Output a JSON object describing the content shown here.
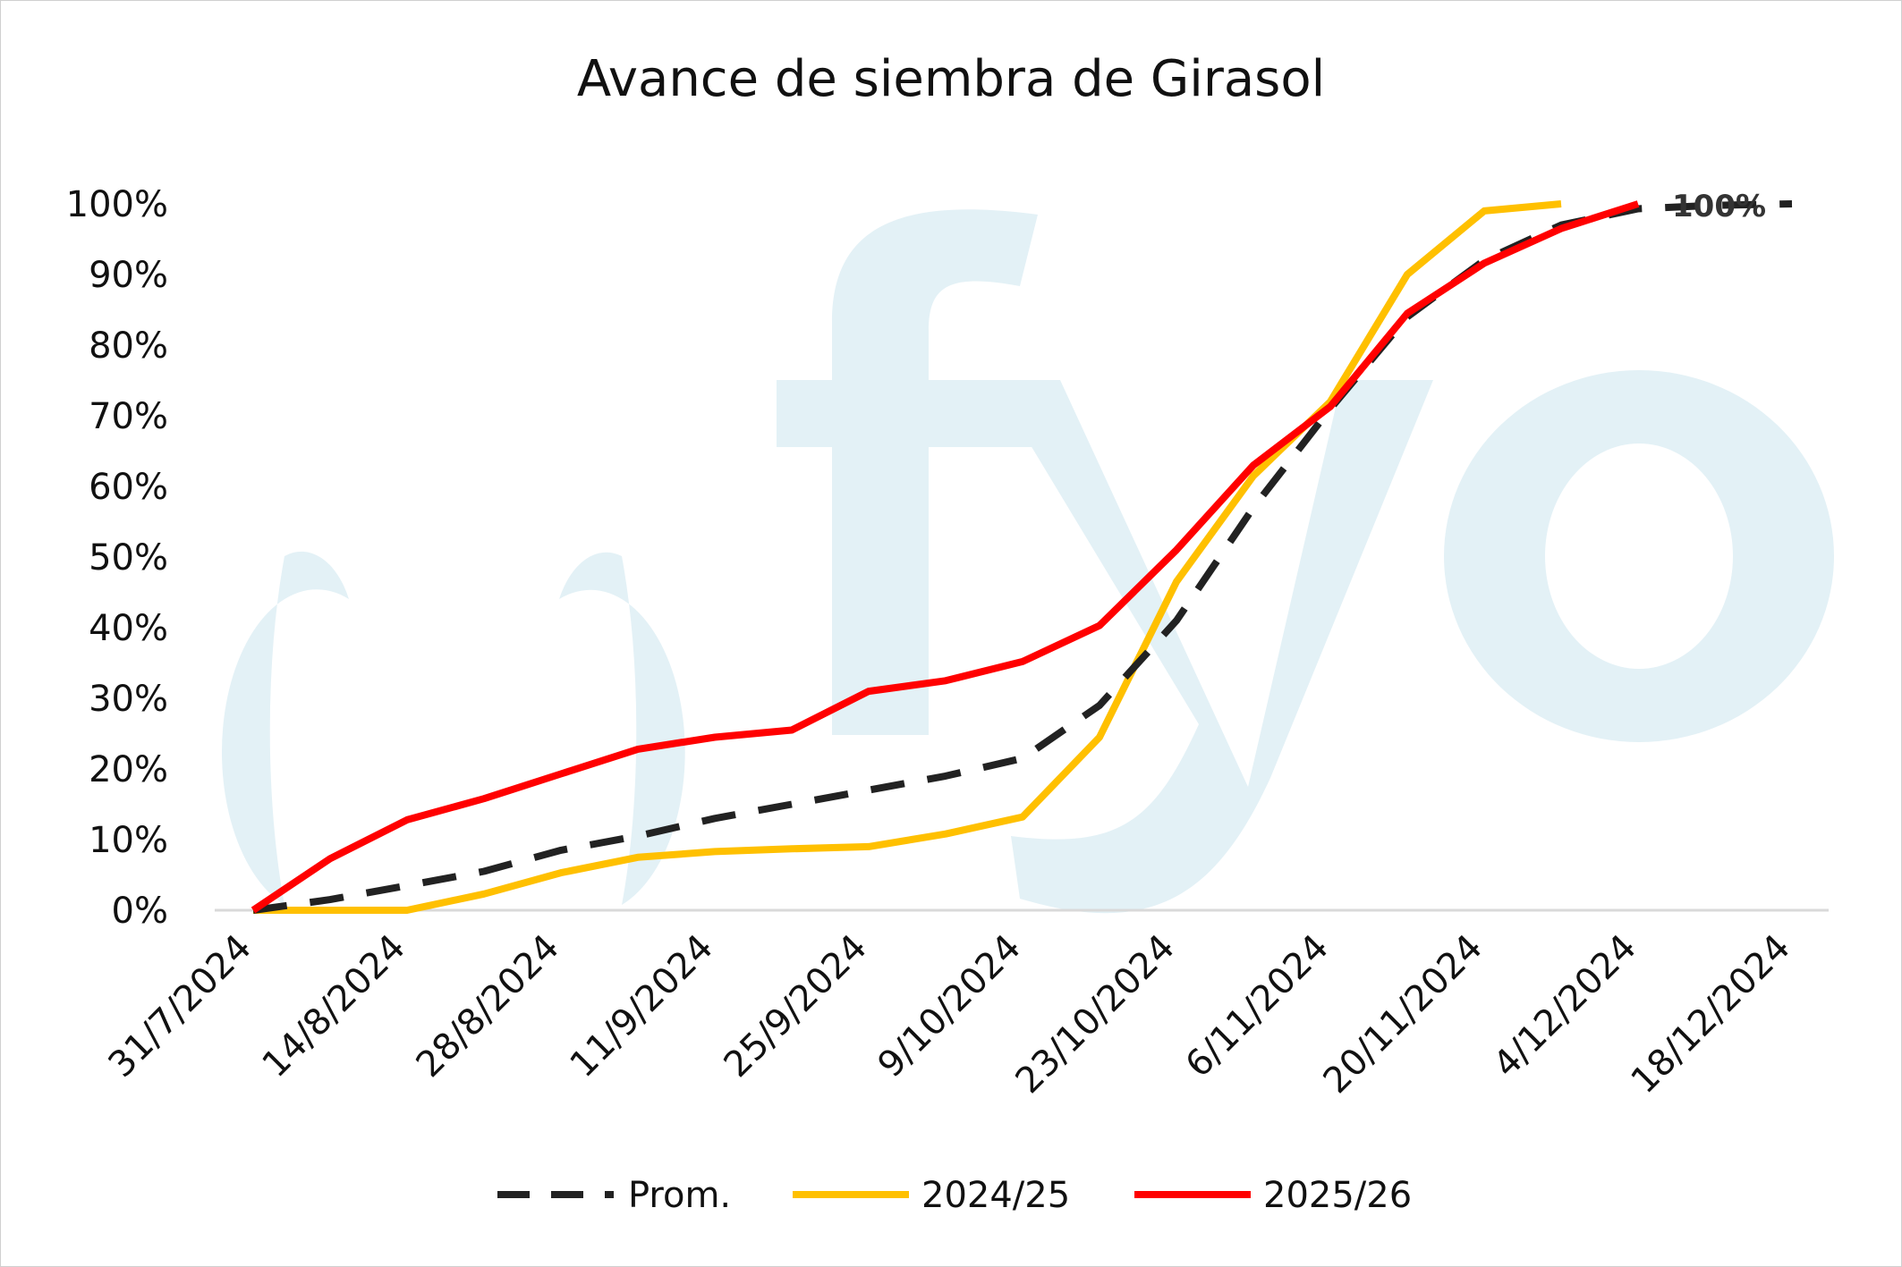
{
  "chart_data": {
    "type": "line",
    "title": "Avance de siembra de Girasol",
    "xlabel": "",
    "ylabel": "",
    "x_tick_labels": [
      "31/7/2024",
      "14/8/2024",
      "28/8/2024",
      "11/9/2024",
      "25/9/2024",
      "9/10/2024",
      "23/10/2024",
      "6/11/2024",
      "20/11/2024",
      "4/12/2024",
      "18/12/2024"
    ],
    "y_tick_labels": [
      "0%",
      "10%",
      "20%",
      "30%",
      "40%",
      "50%",
      "60%",
      "70%",
      "80%",
      "90%",
      "100%"
    ],
    "ylim": [
      0,
      100
    ],
    "grid": false,
    "legend_position": "bottom",
    "watermark": "fyo",
    "end_label": "100%",
    "series": [
      {
        "name": "Prom.",
        "color": "#222222",
        "dash": "dashed",
        "points": [
          [
            "31/7/2024",
            0
          ],
          [
            "7/8/2024",
            1.5
          ],
          [
            "14/8/2024",
            3.5
          ],
          [
            "21/8/2024",
            5.5
          ],
          [
            "28/8/2024",
            8.5
          ],
          [
            "4/9/2024",
            10.5
          ],
          [
            "11/9/2024",
            13
          ],
          [
            "18/9/2024",
            15
          ],
          [
            "25/9/2024",
            17
          ],
          [
            "2/10/2024",
            19
          ],
          [
            "9/10/2024",
            21.5
          ],
          [
            "16/10/2024",
            29
          ],
          [
            "23/10/2024",
            41
          ],
          [
            "30/10/2024",
            57
          ],
          [
            "6/11/2024",
            71
          ],
          [
            "13/11/2024",
            84
          ],
          [
            "20/11/2024",
            92
          ],
          [
            "27/11/2024",
            97
          ],
          [
            "4/12/2024",
            99.3
          ],
          [
            "11/12/2024",
            99.8
          ],
          [
            "18/12/2024",
            100
          ]
        ]
      },
      {
        "name": "2024/25",
        "color": "#FFC000",
        "dash": "solid",
        "points": [
          [
            "31/7/2024",
            0
          ],
          [
            "7/8/2024",
            0
          ],
          [
            "14/8/2024",
            0
          ],
          [
            "21/8/2024",
            2.3
          ],
          [
            "28/8/2024",
            5.3
          ],
          [
            "4/9/2024",
            7.5
          ],
          [
            "11/9/2024",
            8.3
          ],
          [
            "18/9/2024",
            8.7
          ],
          [
            "25/9/2024",
            9
          ],
          [
            "2/10/2024",
            10.8
          ],
          [
            "9/10/2024",
            13.2
          ],
          [
            "16/10/2024",
            24.5
          ],
          [
            "23/10/2024",
            46.5
          ],
          [
            "30/10/2024",
            61.5
          ],
          [
            "6/11/2024",
            72
          ],
          [
            "13/11/2024",
            90
          ],
          [
            "20/11/2024",
            99
          ],
          [
            "27/11/2024",
            100
          ]
        ]
      },
      {
        "name": "2025/26",
        "color": "#FF0000",
        "dash": "solid",
        "points": [
          [
            "31/7/2024",
            0
          ],
          [
            "7/8/2024",
            7.3
          ],
          [
            "14/8/2024",
            12.8
          ],
          [
            "21/8/2024",
            15.8
          ],
          [
            "28/8/2024",
            19.3
          ],
          [
            "4/9/2024",
            22.8
          ],
          [
            "11/9/2024",
            24.5
          ],
          [
            "18/9/2024",
            25.5
          ],
          [
            "25/9/2024",
            31
          ],
          [
            "2/10/2024",
            32.5
          ],
          [
            "9/10/2024",
            35.2
          ],
          [
            "16/10/2024",
            40.3
          ],
          [
            "23/10/2024",
            51
          ],
          [
            "30/10/2024",
            63
          ],
          [
            "6/11/2024",
            71.3
          ],
          [
            "13/11/2024",
            84.5
          ],
          [
            "20/11/2024",
            91.6
          ],
          [
            "27/11/2024",
            96.5
          ],
          [
            "4/12/2024",
            100
          ]
        ]
      }
    ]
  }
}
